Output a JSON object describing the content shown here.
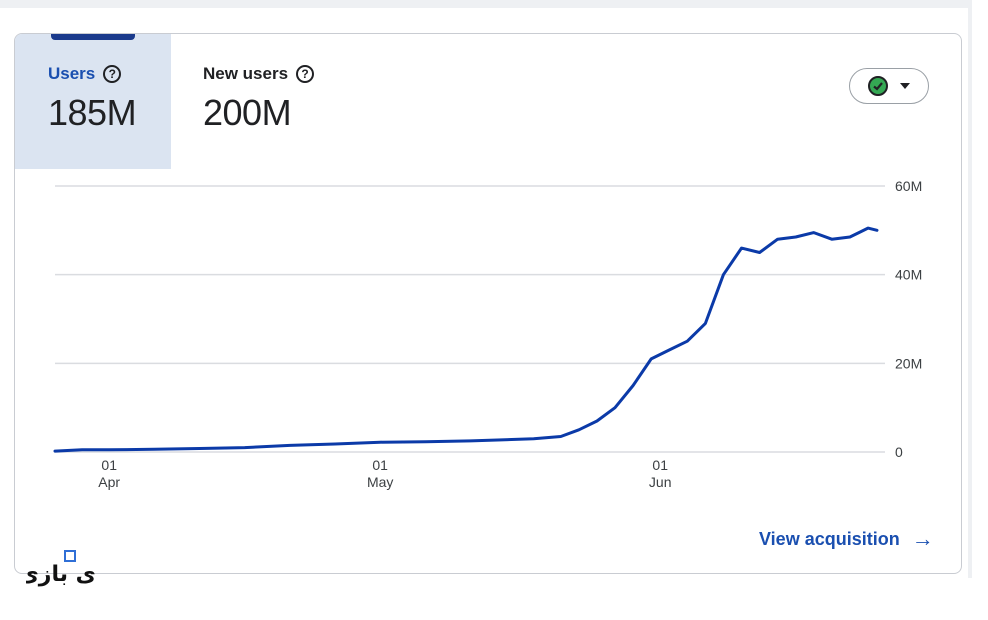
{
  "colors": {
    "accent": "#0b3aa8",
    "active_tab_bg": "#dbe4f1",
    "active_label": "#1a4fb0",
    "grid": "#dadce0",
    "check": "#34a853"
  },
  "metrics": [
    {
      "label": "Users",
      "value": "185M",
      "help_icon": "help-circle-icon",
      "active": true
    },
    {
      "label": "New users",
      "value": "200M",
      "help_icon": "help-circle-icon",
      "active": false
    }
  ],
  "compare": {
    "icon": "check-circle-icon",
    "caret": "caret-down-icon"
  },
  "view_link": {
    "label": "View acquisition",
    "icon": "arrow-right-icon"
  },
  "chart_data": {
    "type": "line",
    "x_label_days": [
      {
        "day": "01",
        "month": "Apr",
        "offset": 0
      },
      {
        "day": "01",
        "month": "May",
        "offset": 30
      },
      {
        "day": "01",
        "month": "Jun",
        "offset": 61
      }
    ],
    "yticks": [
      {
        "value": 0,
        "label": "0"
      },
      {
        "value": 20,
        "label": "20M"
      },
      {
        "value": 40,
        "label": "40M"
      },
      {
        "value": 60,
        "label": "60M"
      }
    ],
    "ylim": [
      0,
      60
    ],
    "xlim_offset": [
      -6,
      85
    ],
    "grid": true,
    "series": [
      {
        "unit": "M",
        "points": [
          [
            -6,
            0.2
          ],
          [
            -3,
            0.5
          ],
          [
            0,
            0.5
          ],
          [
            5,
            0.6
          ],
          [
            10,
            0.8
          ],
          [
            15,
            1.0
          ],
          [
            20,
            1.5
          ],
          [
            25,
            1.8
          ],
          [
            30,
            2.2
          ],
          [
            35,
            2.3
          ],
          [
            40,
            2.5
          ],
          [
            43,
            2.7
          ],
          [
            47,
            3.0
          ],
          [
            50,
            3.5
          ],
          [
            52,
            5.0
          ],
          [
            54,
            7.0
          ],
          [
            56,
            10.0
          ],
          [
            58,
            15.0
          ],
          [
            60,
            21.0
          ],
          [
            62,
            23.0
          ],
          [
            64,
            25.0
          ],
          [
            66,
            29.0
          ],
          [
            68,
            40.0
          ],
          [
            70,
            46.0
          ],
          [
            72,
            45.0
          ],
          [
            74,
            48.0
          ],
          [
            76,
            48.5
          ],
          [
            78,
            49.5
          ],
          [
            80,
            48.0
          ],
          [
            82,
            48.5
          ],
          [
            83,
            49.5
          ],
          [
            84,
            50.5
          ],
          [
            85,
            50.0
          ]
        ]
      }
    ]
  },
  "watermark_text": "ای بازی"
}
